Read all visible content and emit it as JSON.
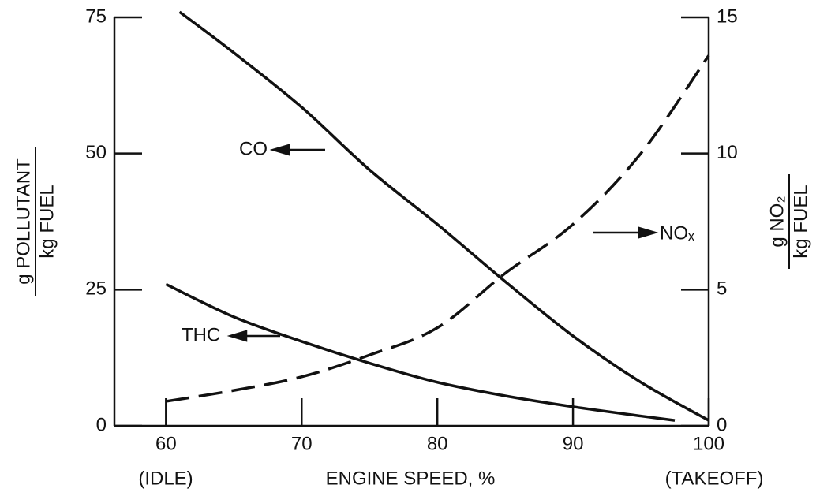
{
  "chart_data": {
    "type": "line",
    "xlabel": "ENGINE SPEED, %",
    "ylabel": {
      "numerator": "g POLLUTANT",
      "denominator": "kg FUEL"
    },
    "y2label": {
      "numerator": "g NO₂",
      "denominator": "kg FUEL"
    },
    "xlim": [
      56.2,
      100
    ],
    "xticks": [
      60,
      70,
      80,
      90,
      100
    ],
    "xtick_notes": [
      "(IDLE)",
      "(TAKEOFF)"
    ],
    "ylim": [
      0,
      75
    ],
    "yticks": [
      0,
      25,
      50,
      75
    ],
    "y2lim": [
      0,
      15
    ],
    "y2ticks": [
      0,
      5,
      10,
      15
    ],
    "series": [
      {
        "name": "CO",
        "color": "#111111",
        "dashed": false,
        "axis": "y",
        "x": [
          61,
          65,
          70,
          75,
          80,
          85,
          90,
          95,
          100
        ],
        "values": [
          76,
          68.5,
          58.5,
          47,
          37,
          26.5,
          16.5,
          8,
          1
        ]
      },
      {
        "name": "THC",
        "color": "#111111",
        "dashed": false,
        "axis": "y",
        "x": [
          60,
          65,
          70,
          75,
          80,
          85,
          90,
          95,
          97.5
        ],
        "values": [
          26,
          20,
          15.5,
          11.5,
          8,
          5.5,
          3.5,
          1.8,
          1
        ]
      },
      {
        "name": "NOₓ",
        "color": "#111111",
        "dashed": true,
        "axis": "y2",
        "x": [
          60,
          65,
          70,
          75,
          80,
          85,
          90,
          95,
          100
        ],
        "values": [
          0.9,
          1.3,
          1.8,
          2.6,
          3.6,
          5.6,
          7.4,
          10,
          13.6
        ]
      }
    ]
  }
}
